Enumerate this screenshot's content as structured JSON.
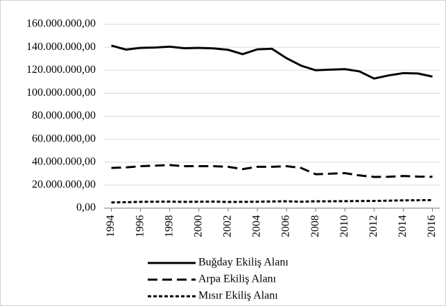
{
  "chart_data": {
    "type": "line",
    "x": [
      1994,
      1995,
      1996,
      1997,
      1998,
      1999,
      2000,
      2001,
      2002,
      2003,
      2004,
      2005,
      2006,
      2007,
      2008,
      2009,
      2010,
      2011,
      2012,
      2013,
      2014,
      2015,
      2016
    ],
    "xlim": [
      1993.5,
      2016.5
    ],
    "xticks": [
      1994,
      1996,
      1998,
      2000,
      2002,
      2004,
      2006,
      2008,
      2010,
      2012,
      2014,
      2016
    ],
    "ylim": [
      0,
      160000000
    ],
    "yticks": [
      {
        "value": 0,
        "label": "0,00"
      },
      {
        "value": 20000000,
        "label": "20.000.000,00"
      },
      {
        "value": 40000000,
        "label": "40.000.000,00"
      },
      {
        "value": 60000000,
        "label": "60.000.000,00"
      },
      {
        "value": 80000000,
        "label": "80.000.000,00"
      },
      {
        "value": 100000000,
        "label": "100.000.000,00"
      },
      {
        "value": 120000000,
        "label": "120.000.000,00"
      },
      {
        "value": 140000000,
        "label": "140.000.000,00"
      },
      {
        "value": 160000000,
        "label": "160.000.000,00"
      }
    ],
    "grid": true,
    "legend": "bottom",
    "series": [
      {
        "name": "Buğday Ekiliş Alanı",
        "color": "#000000",
        "line_style": "solid",
        "values": [
          141500000,
          138000000,
          139500000,
          139800000,
          140500000,
          139200000,
          139500000,
          139000000,
          137800000,
          134000000,
          138200000,
          138700000,
          130500000,
          124000000,
          120000000,
          120500000,
          121000000,
          119000000,
          112800000,
          115500000,
          117500000,
          117200000,
          114500000
        ]
      },
      {
        "name": "Arpa Ekiliş Alanı",
        "color": "#000000",
        "line_style": "dashed",
        "values": [
          35000000,
          35500000,
          36500000,
          37000000,
          37500000,
          36500000,
          36500000,
          36500000,
          36000000,
          34000000,
          36000000,
          36000000,
          36500000,
          35000000,
          29500000,
          30000000,
          30500000,
          28500000,
          27200000,
          27300000,
          28000000,
          27500000,
          27300000
        ]
      },
      {
        "name": "Mısır Ekiliş Alanı",
        "color": "#000000",
        "line_style": "dotted",
        "values": [
          5000000,
          5200000,
          5500000,
          5600000,
          5700000,
          5500000,
          5600000,
          5700000,
          5400000,
          5500000,
          5600000,
          5800000,
          6000000,
          5600000,
          6000000,
          6000000,
          6100000,
          6200000,
          6300000,
          6500000,
          6800000,
          6900000,
          7000000
        ]
      }
    ]
  }
}
